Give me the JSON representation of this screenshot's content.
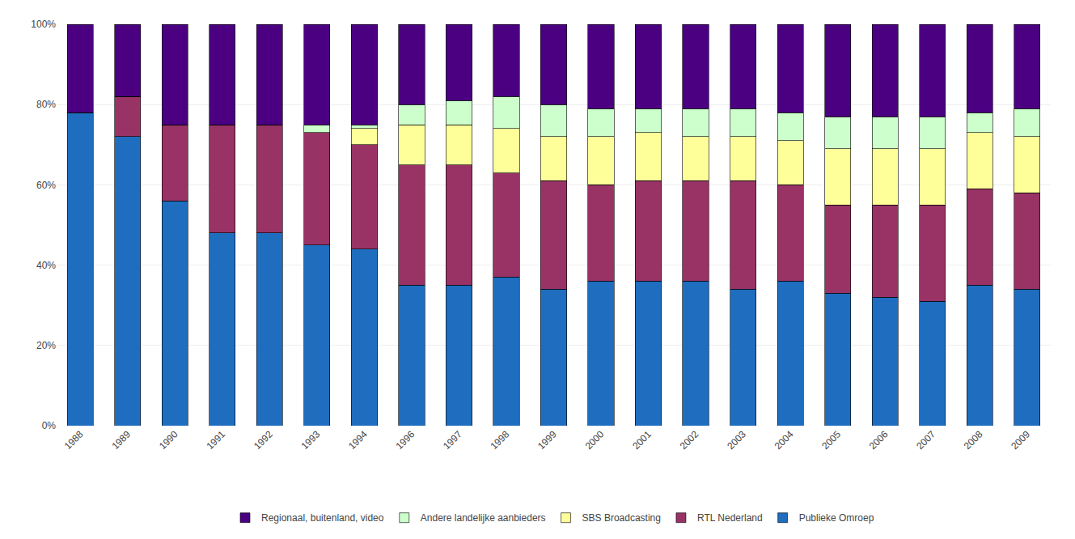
{
  "chart_data": {
    "type": "bar",
    "stacked": true,
    "categories": [
      "1988",
      "1989",
      "1990",
      "1991",
      "1992",
      "1993",
      "1994",
      "1996",
      "1997",
      "1998",
      "1999",
      "2000",
      "2001",
      "2002",
      "2003",
      "2004",
      "2005",
      "2006",
      "2007",
      "2008",
      "2009"
    ],
    "series": [
      {
        "name": "Publieke Omroep",
        "color": "#1f6dbf",
        "values": [
          78,
          72,
          56,
          48,
          48,
          45,
          44,
          35,
          35,
          37,
          34,
          36,
          36,
          36,
          34,
          36,
          33,
          32,
          31,
          35,
          34
        ]
      },
      {
        "name": "RTL Nederland",
        "color": "#993366",
        "values": [
          0,
          10,
          19,
          27,
          27,
          28,
          26,
          30,
          30,
          26,
          27,
          24,
          25,
          25,
          27,
          24,
          22,
          23,
          24,
          24,
          24
        ]
      },
      {
        "name": "SBS Broadcasting",
        "color": "#ffff99",
        "values": [
          0,
          0,
          0,
          0,
          0,
          0,
          4,
          10,
          10,
          11,
          11,
          12,
          12,
          11,
          11,
          11,
          14,
          14,
          14,
          14,
          14
        ]
      },
      {
        "name": "Andere landelijke aanbieders",
        "color": "#ccffcc",
        "values": [
          0,
          0,
          0,
          0,
          0,
          2,
          1,
          5,
          6,
          8,
          8,
          7,
          6,
          7,
          7,
          7,
          8,
          8,
          8,
          5,
          7
        ]
      },
      {
        "name": "Regionaal, buitenland, video",
        "color": "#4b0082",
        "values": [
          22,
          18,
          25,
          25,
          25,
          25,
          25,
          20,
          19,
          18,
          20,
          21,
          21,
          21,
          21,
          22,
          23,
          23,
          23,
          22,
          21
        ]
      }
    ],
    "ylim": [
      0,
      100
    ],
    "yticks": [
      {
        "value": 0,
        "label": "0%"
      },
      {
        "value": 20,
        "label": "20%"
      },
      {
        "value": 40,
        "label": "40%"
      },
      {
        "value": 60,
        "label": "60%"
      },
      {
        "value": 80,
        "label": "80%"
      },
      {
        "value": 100,
        "label": "100%"
      }
    ],
    "grid": true,
    "legend": "bottom"
  }
}
